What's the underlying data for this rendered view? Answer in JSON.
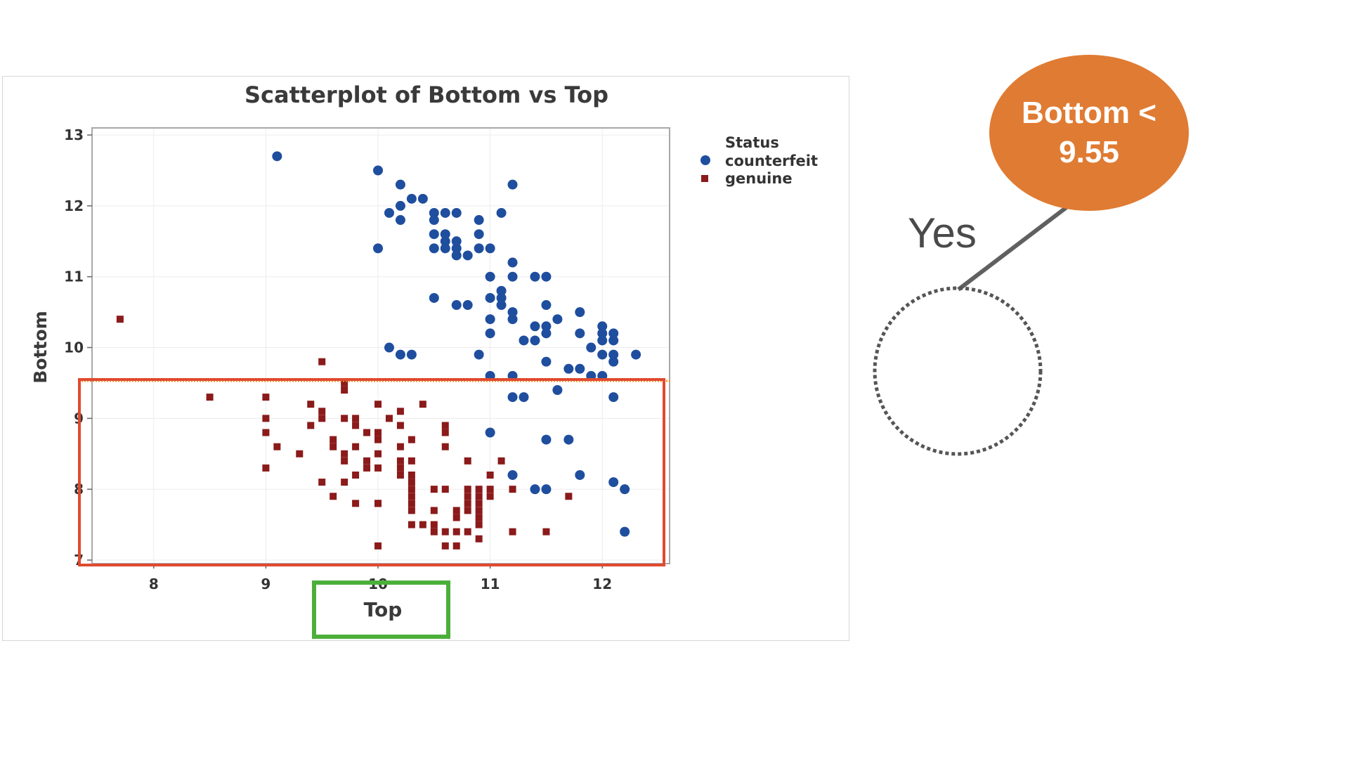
{
  "chart_data": {
    "type": "scatter",
    "title": "Scatterplot of Bottom vs Top",
    "xlabel": "Top",
    "ylabel": "Bottom",
    "xlim": [
      7.45,
      12.6
    ],
    "ylim": [
      6.95,
      13.1
    ],
    "xticks": [
      8,
      9,
      10,
      11,
      12
    ],
    "yticks": [
      7,
      8,
      9,
      10,
      11,
      12,
      13
    ],
    "grid": true,
    "legend": {
      "title": "Status",
      "placement": "right"
    },
    "series": [
      {
        "name": "counterfeit",
        "color": "#1f4e9e",
        "marker": "circle",
        "points": [
          [
            9.1,
            12.7
          ],
          [
            10.0,
            12.5
          ],
          [
            10.2,
            12.3
          ],
          [
            11.2,
            12.3
          ],
          [
            10.3,
            12.1
          ],
          [
            10.4,
            12.1
          ],
          [
            10.2,
            12.0
          ],
          [
            10.1,
            11.9
          ],
          [
            10.5,
            11.9
          ],
          [
            10.6,
            11.9
          ],
          [
            10.7,
            11.9
          ],
          [
            11.1,
            11.9
          ],
          [
            10.2,
            11.8
          ],
          [
            10.5,
            11.8
          ],
          [
            10.9,
            11.8
          ],
          [
            10.5,
            11.6
          ],
          [
            10.6,
            11.6
          ],
          [
            10.9,
            11.6
          ],
          [
            10.6,
            11.5
          ],
          [
            10.7,
            11.5
          ],
          [
            10.0,
            11.4
          ],
          [
            10.5,
            11.4
          ],
          [
            10.6,
            11.4
          ],
          [
            10.7,
            11.4
          ],
          [
            10.9,
            11.4
          ],
          [
            11.0,
            11.4
          ],
          [
            10.7,
            11.3
          ],
          [
            10.8,
            11.3
          ],
          [
            11.2,
            11.2
          ],
          [
            11.0,
            11.0
          ],
          [
            11.2,
            11.0
          ],
          [
            11.4,
            11.0
          ],
          [
            11.5,
            11.0
          ],
          [
            11.1,
            10.8
          ],
          [
            11.0,
            10.7
          ],
          [
            11.1,
            10.7
          ],
          [
            10.5,
            10.7
          ],
          [
            10.7,
            10.6
          ],
          [
            10.8,
            10.6
          ],
          [
            11.1,
            10.6
          ],
          [
            11.5,
            10.6
          ],
          [
            11.2,
            10.5
          ],
          [
            11.8,
            10.5
          ],
          [
            11.0,
            10.4
          ],
          [
            11.2,
            10.4
          ],
          [
            11.6,
            10.4
          ],
          [
            11.4,
            10.3
          ],
          [
            11.5,
            10.3
          ],
          [
            11.8,
            10.2
          ],
          [
            12.0,
            10.3
          ],
          [
            12.0,
            10.2
          ],
          [
            12.1,
            10.2
          ],
          [
            11.0,
            10.2
          ],
          [
            11.5,
            10.2
          ],
          [
            11.3,
            10.1
          ],
          [
            11.4,
            10.1
          ],
          [
            12.0,
            10.1
          ],
          [
            12.1,
            10.1
          ],
          [
            11.9,
            10.0
          ],
          [
            10.1,
            10.0
          ],
          [
            10.2,
            9.9
          ],
          [
            10.3,
            9.9
          ],
          [
            10.9,
            9.9
          ],
          [
            12.0,
            9.9
          ],
          [
            12.1,
            9.9
          ],
          [
            12.3,
            9.9
          ],
          [
            11.5,
            9.8
          ],
          [
            12.1,
            9.8
          ],
          [
            11.7,
            9.7
          ],
          [
            11.8,
            9.7
          ],
          [
            11.9,
            9.6
          ],
          [
            12.0,
            9.6
          ],
          [
            11.0,
            9.6
          ],
          [
            11.2,
            9.6
          ],
          [
            11.6,
            9.4
          ],
          [
            11.2,
            9.3
          ],
          [
            11.3,
            9.3
          ],
          [
            12.1,
            9.3
          ],
          [
            11.0,
            8.8
          ],
          [
            11.5,
            8.7
          ],
          [
            11.7,
            8.7
          ],
          [
            11.2,
            8.2
          ],
          [
            11.8,
            8.2
          ],
          [
            12.1,
            8.1
          ],
          [
            11.4,
            8.0
          ],
          [
            11.5,
            8.0
          ],
          [
            12.2,
            8.0
          ],
          [
            12.2,
            7.4
          ]
        ]
      },
      {
        "name": "genuine",
        "color": "#8b1a1a",
        "marker": "square",
        "points": [
          [
            7.7,
            10.4
          ],
          [
            9.5,
            9.8
          ],
          [
            9.7,
            9.5
          ],
          [
            9.7,
            9.4
          ],
          [
            8.5,
            9.3
          ],
          [
            9.0,
            9.3
          ],
          [
            9.4,
            9.2
          ],
          [
            10.4,
            9.2
          ],
          [
            10.0,
            9.2
          ],
          [
            9.5,
            9.1
          ],
          [
            10.2,
            9.1
          ],
          [
            9.5,
            9.0
          ],
          [
            9.7,
            9.0
          ],
          [
            9.8,
            9.0
          ],
          [
            10.1,
            9.0
          ],
          [
            9.0,
            9.0
          ],
          [
            9.4,
            8.9
          ],
          [
            9.8,
            8.9
          ],
          [
            10.2,
            8.9
          ],
          [
            9.9,
            8.8
          ],
          [
            9.0,
            8.8
          ],
          [
            9.6,
            8.7
          ],
          [
            10.0,
            8.8
          ],
          [
            10.6,
            8.9
          ],
          [
            10.6,
            8.8
          ],
          [
            10.0,
            8.7
          ],
          [
            10.3,
            8.7
          ],
          [
            9.1,
            8.6
          ],
          [
            9.6,
            8.6
          ],
          [
            9.8,
            8.6
          ],
          [
            10.2,
            8.6
          ],
          [
            10.6,
            8.6
          ],
          [
            9.3,
            8.5
          ],
          [
            9.7,
            8.5
          ],
          [
            10.0,
            8.5
          ],
          [
            9.9,
            8.4
          ],
          [
            10.2,
            8.4
          ],
          [
            10.3,
            8.4
          ],
          [
            10.8,
            8.4
          ],
          [
            11.1,
            8.4
          ],
          [
            9.0,
            8.3
          ],
          [
            9.7,
            8.4
          ],
          [
            9.9,
            8.3
          ],
          [
            10.0,
            8.3
          ],
          [
            10.2,
            8.3
          ],
          [
            9.8,
            8.2
          ],
          [
            10.2,
            8.2
          ],
          [
            10.3,
            8.2
          ],
          [
            11.0,
            8.2
          ],
          [
            9.5,
            8.1
          ],
          [
            9.7,
            8.1
          ],
          [
            10.3,
            8.1
          ],
          [
            10.3,
            8.0
          ],
          [
            10.5,
            8.0
          ],
          [
            10.6,
            8.0
          ],
          [
            10.8,
            8.0
          ],
          [
            10.9,
            8.0
          ],
          [
            11.0,
            8.0
          ],
          [
            11.2,
            8.0
          ],
          [
            9.6,
            7.9
          ],
          [
            10.3,
            7.9
          ],
          [
            10.8,
            7.9
          ],
          [
            10.9,
            7.9
          ],
          [
            11.0,
            7.9
          ],
          [
            11.7,
            7.9
          ],
          [
            9.8,
            7.8
          ],
          [
            10.0,
            7.8
          ],
          [
            10.3,
            7.8
          ],
          [
            10.0,
            7.8
          ],
          [
            10.8,
            7.8
          ],
          [
            10.9,
            7.8
          ],
          [
            10.3,
            7.7
          ],
          [
            10.5,
            7.7
          ],
          [
            10.7,
            7.7
          ],
          [
            10.8,
            7.7
          ],
          [
            10.9,
            7.7
          ],
          [
            10.7,
            7.6
          ],
          [
            10.9,
            7.6
          ],
          [
            10.3,
            7.5
          ],
          [
            10.4,
            7.5
          ],
          [
            10.5,
            7.5
          ],
          [
            10.9,
            7.5
          ],
          [
            10.5,
            7.4
          ],
          [
            10.6,
            7.4
          ],
          [
            10.7,
            7.4
          ],
          [
            10.8,
            7.4
          ],
          [
            11.2,
            7.4
          ],
          [
            11.5,
            7.4
          ],
          [
            10.9,
            7.3
          ],
          [
            10.6,
            7.2
          ],
          [
            10.7,
            7.2
          ],
          [
            10.0,
            7.2
          ]
        ]
      }
    ]
  },
  "decision_node": {
    "label": "Bottom < 9.55",
    "color": "#e07b33"
  },
  "branch": {
    "label": "Yes"
  },
  "highlights": {
    "region_color": "#e04a2f",
    "axis_label_color": "#4caf3a",
    "threshold_color": "#f28c28"
  }
}
